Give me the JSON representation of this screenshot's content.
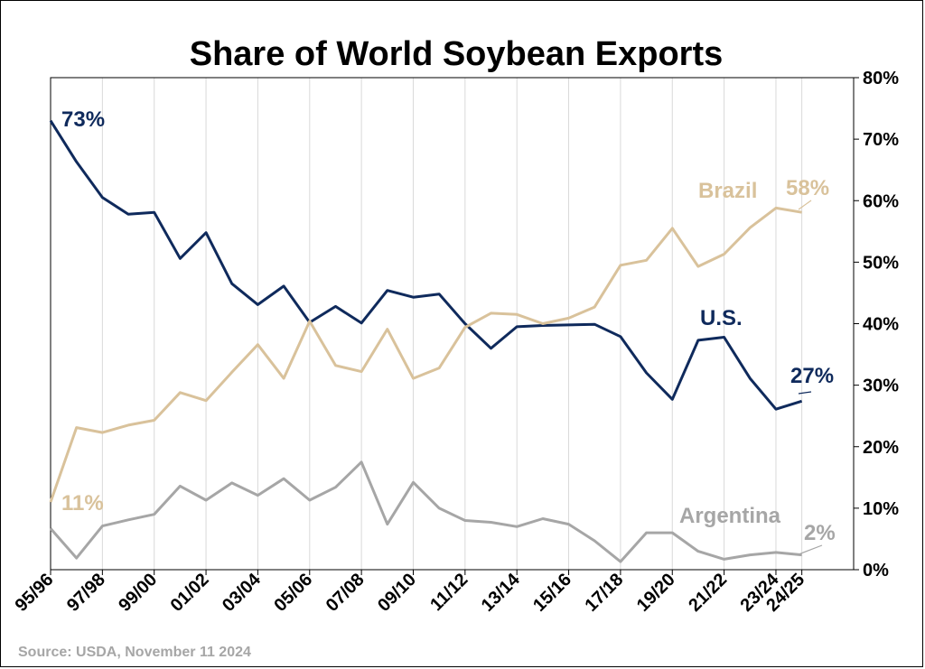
{
  "title": "Share of World Soybean Exports",
  "source": "Source: USDA, November 11 2024",
  "chart_data": {
    "type": "line",
    "title": "Share of World Soybean Exports",
    "ylabel": "",
    "xlabel": "",
    "ylim": [
      0,
      80
    ],
    "y_axis_side": "right",
    "yticks": [
      "0%",
      "10%",
      "20%",
      "30%",
      "40%",
      "50%",
      "60%",
      "70%",
      "80%"
    ],
    "x": [
      "95/96",
      "96/97",
      "97/98",
      "98/99",
      "99/00",
      "00/01",
      "01/02",
      "02/03",
      "03/04",
      "04/05",
      "05/06",
      "06/07",
      "07/08",
      "08/09",
      "09/10",
      "10/11",
      "11/12",
      "12/13",
      "13/14",
      "14/15",
      "15/16",
      "16/17",
      "17/18",
      "18/19",
      "19/20",
      "20/21",
      "21/22",
      "22/23",
      "23/24",
      "24/25"
    ],
    "xticks": [
      "95/96",
      "97/98",
      "99/00",
      "01/02",
      "03/04",
      "05/06",
      "07/08",
      "09/10",
      "11/12",
      "13/14",
      "15/16",
      "17/18",
      "19/20",
      "21/22",
      "23/24",
      "24/25"
    ],
    "grid": true,
    "series": [
      {
        "name": "U.S.",
        "color": "#0f2a5c",
        "values": [
          73,
          66.3,
          60.5,
          57.8,
          58.1,
          50.6,
          54.8,
          46.5,
          43.1,
          46.1,
          40.2,
          42.8,
          40.1,
          45.4,
          44.3,
          44.8,
          40.0,
          36.0,
          39.5,
          39.7,
          39.8,
          39.9,
          37.9,
          32.0,
          27.7,
          37.3,
          37.8,
          31.1,
          26.1,
          27.4
        ]
      },
      {
        "name": "Brazil",
        "color": "#d9c29b",
        "values": [
          11,
          23.1,
          22.3,
          23.5,
          24.3,
          28.8,
          27.5,
          32.1,
          36.6,
          31.1,
          40.4,
          33.2,
          32.2,
          39.1,
          31.1,
          32.8,
          39.4,
          41.7,
          41.5,
          40.0,
          40.9,
          42.7,
          49.5,
          50.3,
          55.5,
          49.3,
          51.3,
          55.6,
          58.8,
          58.1
        ]
      },
      {
        "name": "Argentina",
        "color": "#a6a6a6",
        "values": [
          6.7,
          1.9,
          7.1,
          8.1,
          9.0,
          13.6,
          11.3,
          14.1,
          12.1,
          14.8,
          11.3,
          13.4,
          17.5,
          7.4,
          14.2,
          10.0,
          8.0,
          7.7,
          7.0,
          8.3,
          7.4,
          4.7,
          1.3,
          6.0,
          6.0,
          3.0,
          1.7,
          2.4,
          2.8,
          2.4
        ]
      }
    ],
    "annotations": [
      {
        "text": "73%",
        "series": "U.S."
      },
      {
        "text": "U.S.",
        "series": "U.S."
      },
      {
        "text": "27%",
        "series": "U.S."
      },
      {
        "text": "Brazil",
        "series": "Brazil"
      },
      {
        "text": "58%",
        "series": "Brazil"
      },
      {
        "text": "11%",
        "series": "Brazil"
      },
      {
        "text": "Argentina",
        "series": "Argentina"
      },
      {
        "text": "2%",
        "series": "Argentina"
      }
    ]
  }
}
